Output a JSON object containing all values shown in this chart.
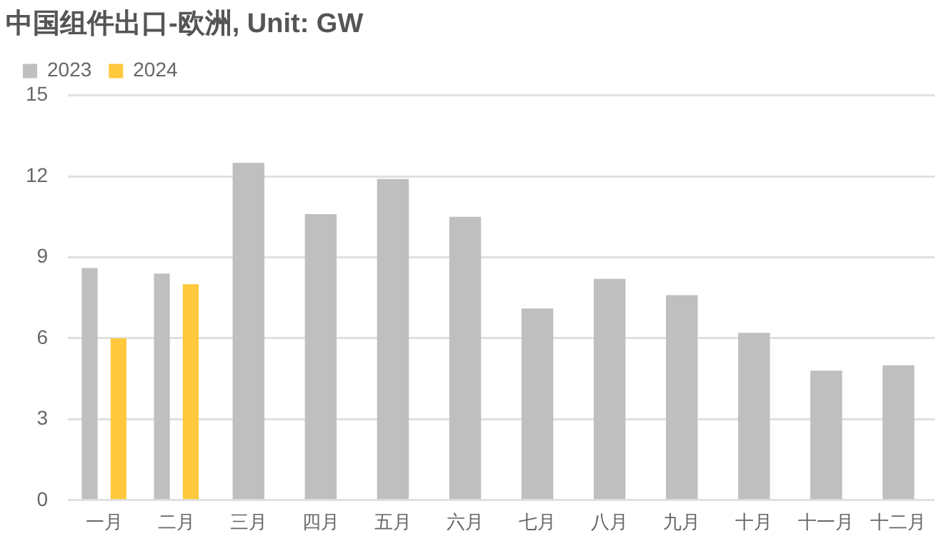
{
  "chart_data": {
    "type": "bar",
    "title": "中国组件出口-欧洲, Unit: GW",
    "categories": [
      "一月",
      "二月",
      "三月",
      "四月",
      "五月",
      "六月",
      "七月",
      "八月",
      "九月",
      "十月",
      "十一月",
      "十二月"
    ],
    "series": [
      {
        "name": "2023",
        "color": "#bfbfbf",
        "values": [
          8.6,
          8.4,
          12.5,
          10.6,
          11.9,
          10.5,
          7.1,
          8.2,
          7.6,
          6.2,
          4.8,
          5.0
        ]
      },
      {
        "name": "2024",
        "color": "#ffc83d",
        "values": [
          6.0,
          8.0,
          null,
          null,
          null,
          null,
          null,
          null,
          null,
          null,
          null,
          null
        ]
      }
    ],
    "ylim": [
      0,
      15
    ],
    "yticks": [
      0,
      3,
      6,
      9,
      12,
      15
    ],
    "grid": "y",
    "legend": "top left"
  }
}
